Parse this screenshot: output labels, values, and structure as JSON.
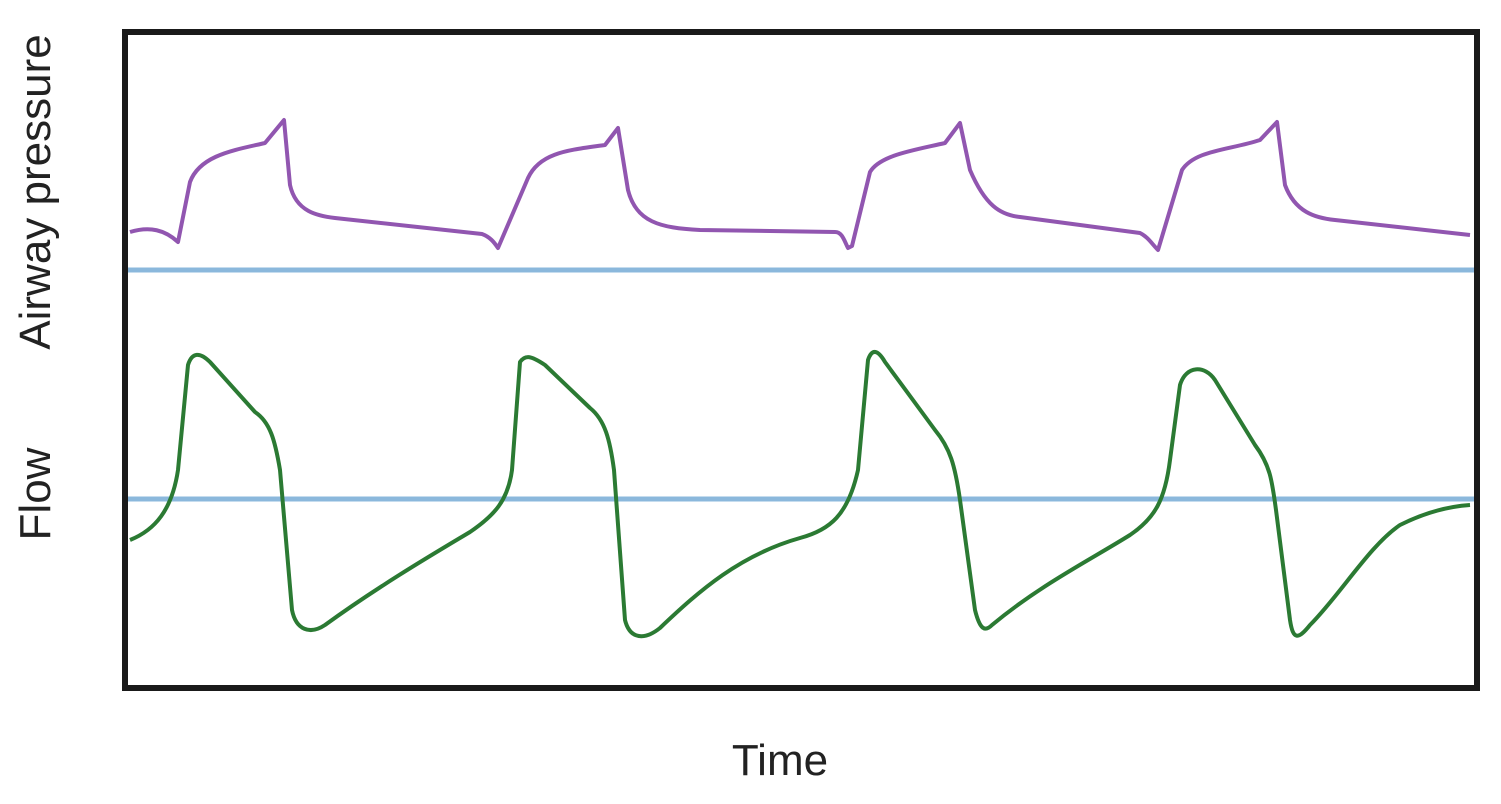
{
  "labels": {
    "pressure_axis": "Airway pressure",
    "flow_axis": "Flow",
    "time_axis": "Time"
  }
}
